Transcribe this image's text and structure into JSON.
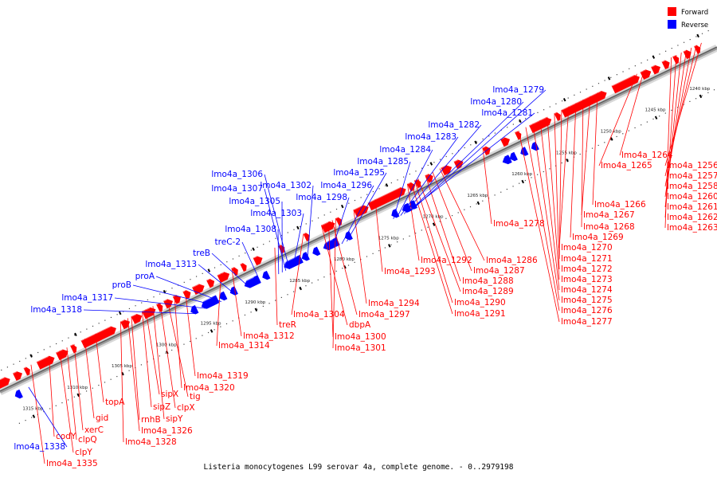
{
  "caption": "Listeria monocytogenes L99 serovar 4a, complete genome. - 0..2979198",
  "legend": [
    {
      "label": "Forward",
      "color": "#ff0000"
    },
    {
      "label": "Reverse",
      "color": "#0000ff"
    }
  ],
  "colors": {
    "forward": "#ff0000",
    "reverse": "#0000ff",
    "backbone": "#888888"
  },
  "scale_ticks": [
    "1240 kbp",
    "1245 kbp",
    "1250 kbp",
    "1255 kbp",
    "1260 kbp",
    "1265 kbp",
    "1270 kbp",
    "1275 kbp",
    "1280 kbp",
    "1285 kbp",
    "1290 kbp",
    "1295 kbp",
    "1300 kbp",
    "1305 kbp",
    "1310 kbp",
    "1315 kbp"
  ],
  "forward_labels": [
    "lmo4a_1264",
    "lmo4a_1265",
    "lmo4a_1256",
    "lmo4a_1257",
    "lmo4a_1258",
    "lmo4a_1260",
    "lmo4a_1261",
    "lmo4a_1262",
    "lmo4a_1263",
    "lmo4a_1266",
    "lmo4a_1267",
    "lmo4a_1268",
    "lmo4a_1269",
    "lmo4a_1278",
    "lmo4a_1270",
    "lmo4a_1271",
    "lmo4a_1272",
    "lmo4a_1273",
    "lmo4a_1274",
    "lmo4a_1275",
    "lmo4a_1276",
    "lmo4a_1277",
    "lmo4a_1286",
    "lmo4a_1287",
    "lmo4a_1292",
    "lmo4a_1288",
    "lmo4a_1289",
    "lmo4a_1290",
    "lmo4a_1291",
    "lmo4a_1293",
    "lmo4a_1294",
    "lmo4a_1297",
    "lmo4a_1304",
    "dbpA",
    "lmo4a_1300",
    "lmo4a_1301",
    "treR",
    "lmo4a_1312",
    "lmo4a_1314",
    "lmo4a_1319",
    "lmo4a_1320",
    "tig",
    "clpX",
    "sipX",
    "sipY",
    "sipZ",
    "rnhB",
    "lmo4a_1326",
    "lmo4a_1328",
    "topA",
    "gid",
    "xerC",
    "clpQ",
    "codY",
    "clpY",
    "lmo4a_1335"
  ],
  "reverse_labels": [
    "lmo4a_1279",
    "lmo4a_1280",
    "lmo4a_1281",
    "lmo4a_1282",
    "lmo4a_1283",
    "lmo4a_1284",
    "lmo4a_1285",
    "lmo4a_1295",
    "lmo4a_1296",
    "lmo4a_1298",
    "lmo4a_1302",
    "lmo4a_1306",
    "lmo4a_1307",
    "lmo4a_1305",
    "lmo4a_1303",
    "lmo4a_1308",
    "treC-2",
    "treB",
    "lmo4a_1313",
    "proA",
    "proB",
    "lmo4a_1317",
    "lmo4a_1318",
    "lmo4a_1338"
  ]
}
